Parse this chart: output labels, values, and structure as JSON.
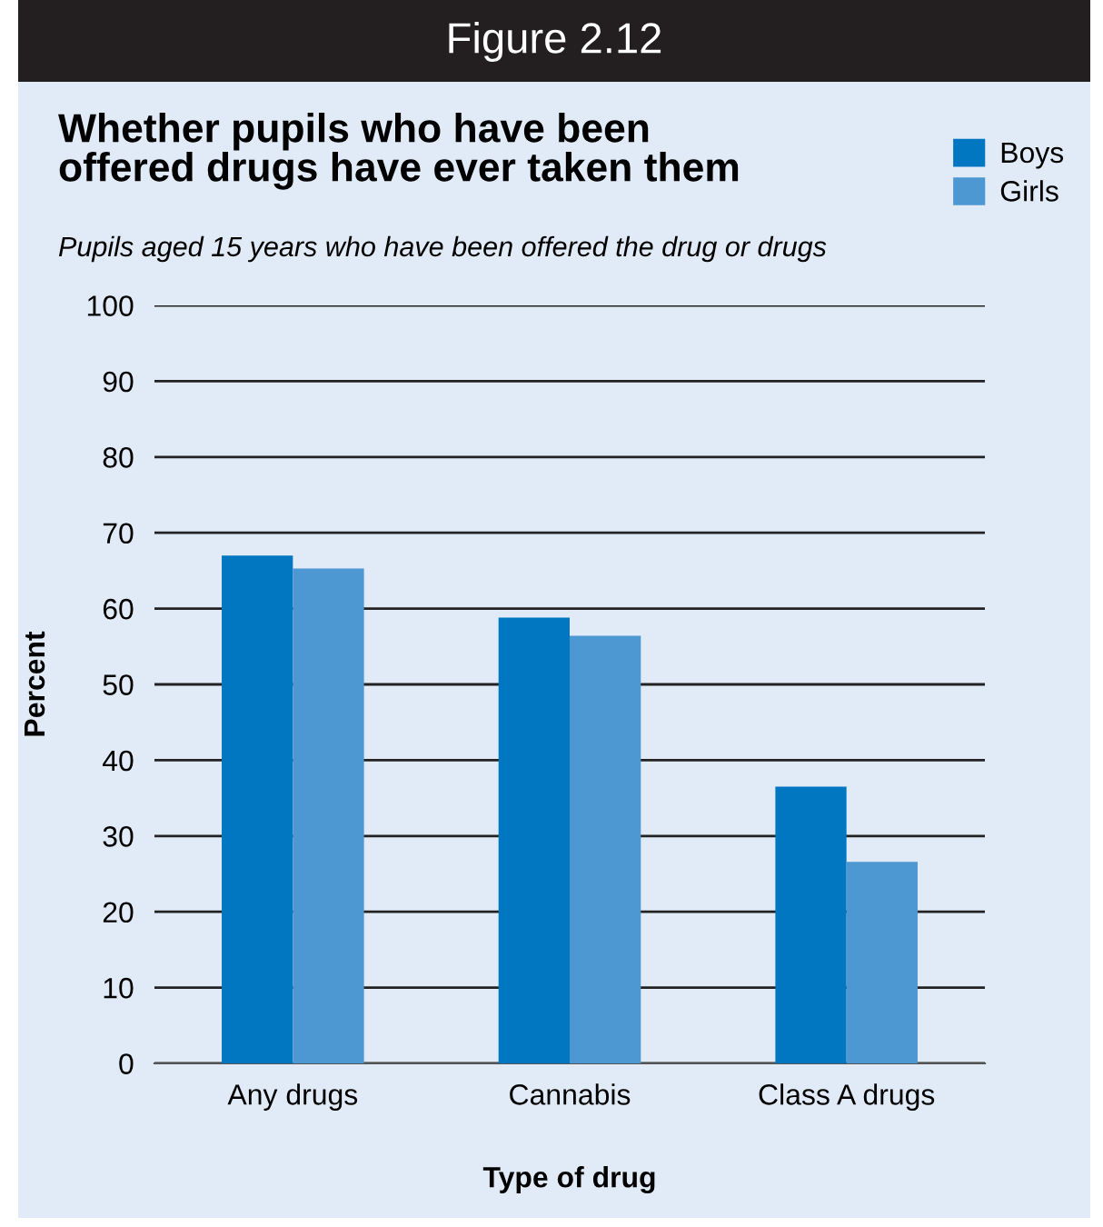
{
  "chart_data": {
    "type": "bar",
    "title": "Whether pupils who have been\noffered drugs have ever taken them",
    "subtitle": "Pupils aged 15 years who have been offered the drug or drugs",
    "annotations": [
      "Figure 2.12"
    ],
    "xlabel": "Type of drug",
    "ylabel": "Percent",
    "categories": [
      "Any drugs",
      "Cannabis",
      "Class A drugs"
    ],
    "series": [
      {
        "name": "Boys",
        "color": "#0077c0",
        "values": [
          67,
          58.8,
          36.5
        ]
      },
      {
        "name": "Girls",
        "color": "#4d97d2",
        "values": [
          65.3,
          56.4,
          26.6
        ]
      }
    ],
    "ylim": [
      0,
      100
    ],
    "yticks": [
      0,
      10,
      20,
      30,
      40,
      50,
      60,
      70,
      80,
      90,
      100
    ],
    "grid": "y",
    "legend": "top right"
  }
}
